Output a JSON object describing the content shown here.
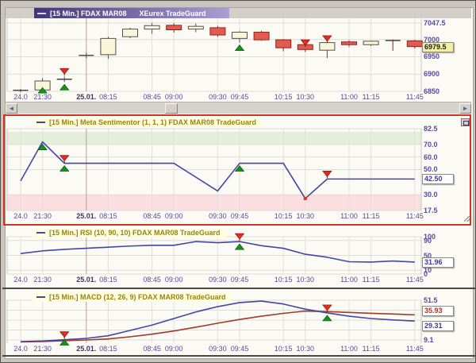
{
  "window": {
    "title_instrument": "[15 Min.] FDAX MAR08",
    "title_platform": "XEurex TradeGuard"
  },
  "colors": {
    "accent_title_bar": "#403778",
    "candle_up": "#faf6da",
    "candle_up_border": "#55504a",
    "candle_down": "#e25a50",
    "candle_down_border": "#8f231b",
    "indicator_line": "#4345a8",
    "macd_signal_line": "#9e3b28",
    "buy_signal": "#169219",
    "sell_signal": "#e12f1e",
    "overbought_band": "#e3efdb",
    "oversold_band": "#fbdee0",
    "last_price_bg": "#f5eea6",
    "selection_border": "#d03428"
  },
  "scrollbar": {
    "left_arrow": "◄",
    "right_arrow": "►"
  },
  "time_axis": {
    "session_break_i": 3,
    "labels": [
      {
        "text": "24.0",
        "i": 0
      },
      {
        "text": "21:30",
        "i": 1
      },
      {
        "text": "25.01.",
        "i": 3,
        "bold": true
      },
      {
        "text": "08:15",
        "i": 4
      },
      {
        "text": "08:45",
        "i": 6
      },
      {
        "text": "09:00",
        "i": 7
      },
      {
        "text": "09:30",
        "i": 9
      },
      {
        "text": "09:45",
        "i": 10
      },
      {
        "text": "10:15",
        "i": 12
      },
      {
        "text": "10:30",
        "i": 13
      },
      {
        "text": "11:00",
        "i": 15
      },
      {
        "text": "11:15",
        "i": 16
      },
      {
        "text": "11:45",
        "i": 18
      }
    ]
  },
  "chart_data": [
    {
      "type": "candlestick",
      "title": "[15 Min.] FDAX MAR08",
      "subtitle": "XEurex TradeGuard",
      "ylim": [
        6850,
        7047.5
      ],
      "y_ticks": [
        {
          "v": 7047.5,
          "label": "7047.5"
        },
        {
          "v": 7000,
          "label": "7000"
        },
        {
          "v": 6950,
          "label": "6950"
        },
        {
          "v": 6900,
          "label": "6900"
        },
        {
          "v": 6850,
          "label": "6850"
        }
      ],
      "last_value": {
        "text": "6979.5",
        "v": 6979.5
      },
      "candles": [
        [
          6852,
          6857,
          6847,
          6853
        ],
        [
          6854,
          6888,
          6850,
          6880
        ],
        [
          6884,
          6893,
          6877,
          6885
        ],
        [
          6953,
          6962,
          6946,
          6954
        ],
        [
          6956,
          7008,
          6944,
          7003
        ],
        [
          7008,
          7034,
          7004,
          7030
        ],
        [
          7030,
          7048,
          7016,
          7040
        ],
        [
          7041,
          7047,
          7020,
          7028
        ],
        [
          7030,
          7046,
          7021,
          7038
        ],
        [
          7034,
          7039,
          7008,
          7013
        ],
        [
          7003,
          7024,
          6991,
          7021
        ],
        [
          7021,
          7025,
          6996,
          6999
        ],
        [
          6999,
          7001,
          6966,
          6976
        ],
        [
          6985,
          6990,
          6964,
          6971
        ],
        [
          6969,
          6993,
          6946,
          6991
        ],
        [
          6993,
          6998,
          6979,
          6985
        ],
        [
          6985,
          6997,
          6981,
          6995
        ],
        [
          6997,
          7000,
          6967,
          6996
        ],
        [
          6996,
          6999,
          6974,
          6979.5
        ]
      ],
      "signals": [
        {
          "i": 1,
          "type": "buy",
          "v": 6868
        },
        {
          "i": 2,
          "type": "sell"
        },
        {
          "i": 2,
          "type": "buy"
        },
        {
          "i": 10,
          "type": "buy"
        },
        {
          "i": 13,
          "type": "sell",
          "v": 6976
        },
        {
          "i": 14,
          "type": "sell",
          "v": 6988
        }
      ]
    },
    {
      "type": "line",
      "title": "[15 Min.] Meta Sentimentor  (1, 1, 1) FDAX MAR08 TradeGuard",
      "ylim": [
        17.5,
        82.5
      ],
      "y_ticks": [
        {
          "v": 82.5,
          "label": "82.5"
        },
        {
          "v": 70,
          "label": "70.0"
        },
        {
          "v": 60,
          "label": "60.0"
        },
        {
          "v": 50,
          "label": "50.0"
        },
        {
          "v": 30,
          "label": "30.0"
        },
        {
          "v": 17.5,
          "label": "17.5"
        }
      ],
      "bands": [
        {
          "from": 70,
          "to": 80,
          "color": "#e3efdb"
        },
        {
          "from": 17.5,
          "to": 30,
          "color": "#fbdee0"
        }
      ],
      "values": [
        41,
        72,
        55,
        55,
        55,
        55,
        55,
        55,
        44,
        33,
        55,
        55,
        55,
        27,
        42.5,
        42.5,
        42.5,
        42.5,
        42.5
      ],
      "last_value": {
        "text": "42.50",
        "v": 42.5
      },
      "signals": [
        {
          "i": 1,
          "type": "buy"
        },
        {
          "i": 2,
          "type": "sell"
        },
        {
          "i": 2,
          "type": "buy"
        },
        {
          "i": 10,
          "type": "buy"
        },
        {
          "i": 13,
          "type": "dot"
        },
        {
          "i": 14,
          "type": "sell"
        }
      ]
    },
    {
      "type": "line",
      "title": "[15 Min.] RSI  (10, 90, 10) FDAX MAR08 TradeGuard",
      "ylim": [
        0,
        100
      ],
      "y_ticks": [
        {
          "v": 100,
          "label": "100"
        },
        {
          "v": 90,
          "label": "90"
        },
        {
          "v": 50,
          "label": "50"
        },
        {
          "v": 10,
          "label": "10"
        },
        {
          "v": 0,
          "label": "0"
        }
      ],
      "values": [
        55,
        62,
        66,
        69,
        72,
        75,
        77,
        77,
        87,
        84,
        87,
        76,
        69,
        53,
        45,
        33,
        32,
        35,
        31.96
      ],
      "last_value": {
        "text": "31.96",
        "v": 31.96
      },
      "signals": [
        {
          "i": 10,
          "type": "sell"
        },
        {
          "i": 10,
          "type": "buy"
        }
      ]
    },
    {
      "type": "multiline",
      "title": "[15 Min.] MACD  (12, 26, 9) FDAX MAR08 TradeGuard",
      "ylim": [
        5,
        53.5
      ],
      "y_ticks": [
        {
          "v": 51.5,
          "label": "51.5"
        },
        {
          "v": 9.1,
          "label": "9.1"
        }
      ],
      "grid_extra": [
        40.9,
        30.3,
        19.7
      ],
      "series": [
        {
          "name": "MACD",
          "color": "#4345a8",
          "values": [
            7.4,
            8,
            9.4,
            10.8,
            13.6,
            19.3,
            25,
            32,
            39,
            44.7,
            49,
            50.6,
            47.5,
            42,
            38,
            34.5,
            32,
            30.5,
            29.31
          ]
        },
        {
          "name": "Signal",
          "color": "#9e3b28",
          "values": [
            7,
            7.4,
            8.3,
            9.1,
            10.2,
            12.5,
            15.3,
            18.7,
            22.7,
            27,
            31,
            34.5,
            37.5,
            40,
            39.4,
            38.5,
            37.6,
            36.8,
            35.93
          ]
        }
      ],
      "last_values": [
        {
          "text": "35.93",
          "v": 35.93,
          "color": "#a83424"
        },
        {
          "text": "29.31",
          "v": 29.31,
          "color": "#3a3aa0"
        }
      ],
      "signals": [
        {
          "i": 2,
          "type": "sell"
        },
        {
          "i": 2,
          "type": "buy",
          "v": 12
        },
        {
          "i": 14,
          "type": "sell"
        },
        {
          "i": 14,
          "type": "buy"
        }
      ]
    }
  ]
}
